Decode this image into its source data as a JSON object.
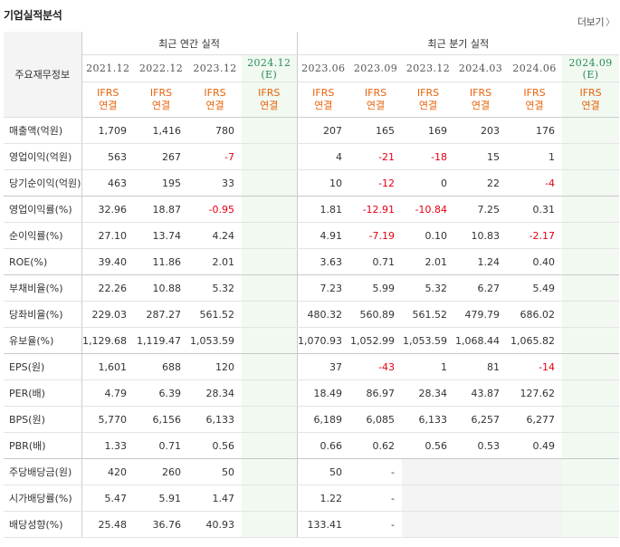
{
  "header": {
    "title": "기업실적분석",
    "more_label": "더보기",
    "more_icon": "chevron-right-icon"
  },
  "table": {
    "corner_label": "주요재무정보",
    "group_annual": "최근 연간 실적",
    "group_quarter": "최근 분기 실적",
    "periods": [
      {
        "label": "2021.12",
        "sub": "",
        "est": false
      },
      {
        "label": "2022.12",
        "sub": "",
        "est": false
      },
      {
        "label": "2023.12",
        "sub": "",
        "est": false
      },
      {
        "label": "2024.12",
        "sub": "(E)",
        "est": true
      },
      {
        "label": "2023.06",
        "sub": "",
        "est": false
      },
      {
        "label": "2023.09",
        "sub": "",
        "est": false
      },
      {
        "label": "2023.12",
        "sub": "",
        "est": false
      },
      {
        "label": "2024.03",
        "sub": "",
        "est": false
      },
      {
        "label": "2024.06",
        "sub": "",
        "est": false
      },
      {
        "label": "2024.09",
        "sub": "(E)",
        "est": true
      }
    ],
    "ifrs_top": "IFRS",
    "ifrs_bottom": "연결",
    "rows": [
      {
        "label": "매출액(억원)",
        "values": [
          "1,709",
          "1,416",
          "780",
          "",
          "207",
          "165",
          "169",
          "203",
          "176",
          ""
        ],
        "section_end": false
      },
      {
        "label": "영업이익(억원)",
        "values": [
          "563",
          "267",
          "-7",
          "",
          "4",
          "-21",
          "-18",
          "15",
          "1",
          ""
        ],
        "section_end": false
      },
      {
        "label": "당기순이익(억원)",
        "values": [
          "463",
          "195",
          "33",
          "",
          "10",
          "-12",
          "0",
          "22",
          "-4",
          ""
        ],
        "section_end": true
      },
      {
        "label": "영업이익률(%)",
        "values": [
          "32.96",
          "18.87",
          "-0.95",
          "",
          "1.81",
          "-12.91",
          "-10.84",
          "7.25",
          "0.31",
          ""
        ],
        "section_end": false
      },
      {
        "label": "순이익률(%)",
        "values": [
          "27.10",
          "13.74",
          "4.24",
          "",
          "4.91",
          "-7.19",
          "0.10",
          "10.83",
          "-2.17",
          ""
        ],
        "section_end": false
      },
      {
        "label": "ROE(%)",
        "values": [
          "39.40",
          "11.86",
          "2.01",
          "",
          "3.63",
          "0.71",
          "2.01",
          "1.24",
          "0.40",
          ""
        ],
        "section_end": true
      },
      {
        "label": "부채비율(%)",
        "values": [
          "22.26",
          "10.88",
          "5.32",
          "",
          "7.23",
          "5.99",
          "5.32",
          "6.27",
          "5.49",
          ""
        ],
        "section_end": false
      },
      {
        "label": "당좌비율(%)",
        "values": [
          "229.03",
          "287.27",
          "561.52",
          "",
          "480.32",
          "560.89",
          "561.52",
          "479.79",
          "686.02",
          ""
        ],
        "section_end": false
      },
      {
        "label": "유보율(%)",
        "values": [
          "1,129.68",
          "1,119.47",
          "1,053.59",
          "",
          "1,070.93",
          "1,052.99",
          "1,053.59",
          "1,068.44",
          "1,065.82",
          ""
        ],
        "section_end": true
      },
      {
        "label": "EPS(원)",
        "values": [
          "1,601",
          "688",
          "120",
          "",
          "37",
          "-43",
          "1",
          "81",
          "-14",
          ""
        ],
        "section_end": false
      },
      {
        "label": "PER(배)",
        "values": [
          "4.79",
          "6.39",
          "28.34",
          "",
          "18.49",
          "86.97",
          "28.34",
          "43.87",
          "127.62",
          ""
        ],
        "section_end": false
      },
      {
        "label": "BPS(원)",
        "values": [
          "5,770",
          "6,156",
          "6,133",
          "",
          "6,189",
          "6,085",
          "6,133",
          "6,257",
          "6,277",
          ""
        ],
        "section_end": false
      },
      {
        "label": "PBR(배)",
        "values": [
          "1.33",
          "0.71",
          "0.56",
          "",
          "0.66",
          "0.62",
          "0.56",
          "0.53",
          "0.49",
          ""
        ],
        "section_end": true
      },
      {
        "label": "주당배당금(원)",
        "values": [
          "420",
          "260",
          "50",
          "",
          "50",
          "-",
          "",
          "",
          "",
          ""
        ],
        "section_end": false,
        "gray_from": 6
      },
      {
        "label": "시가배당률(%)",
        "values": [
          "5.47",
          "5.91",
          "1.47",
          "",
          "1.22",
          "-",
          "",
          "",
          "",
          ""
        ],
        "section_end": false,
        "gray_from": 6
      },
      {
        "label": "배당성향(%)",
        "values": [
          "25.48",
          "36.76",
          "40.93",
          "",
          "133.41",
          "-",
          "",
          "",
          "",
          ""
        ],
        "section_end": false,
        "gray_from": 6
      }
    ]
  }
}
